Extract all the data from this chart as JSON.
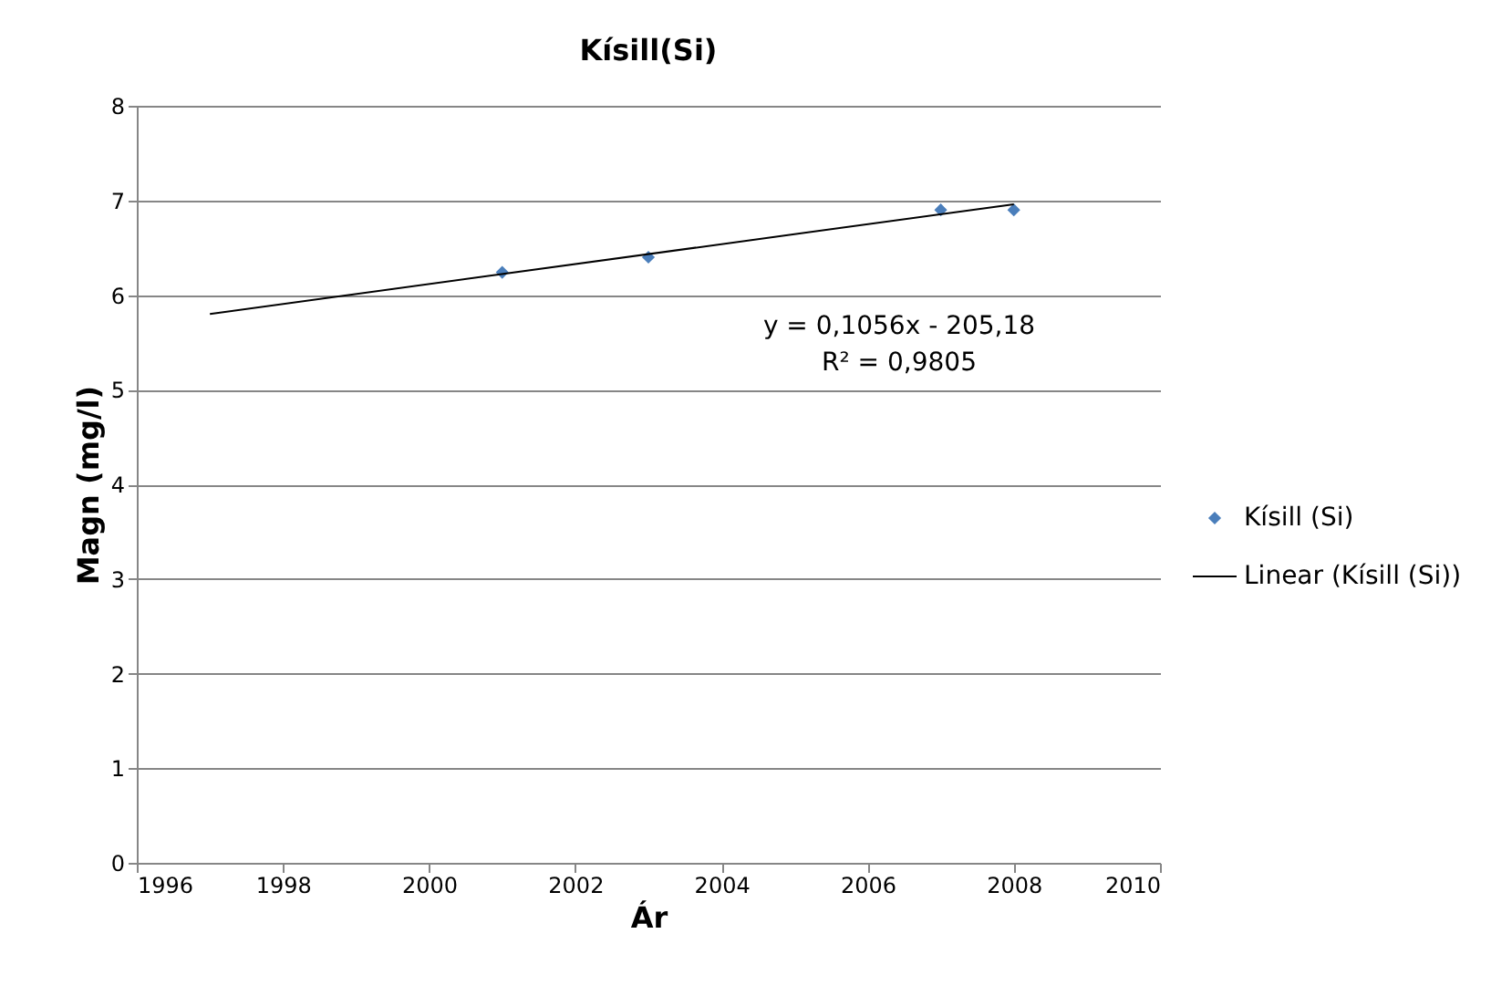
{
  "chart_data": {
    "type": "scatter",
    "title": "Kísill(Si)",
    "xlabel": "Ár",
    "ylabel": "Magn (mg/l)",
    "xlim": [
      1996,
      2010
    ],
    "xticks": [
      1996,
      1998,
      2000,
      2002,
      2004,
      2006,
      2008,
      2010
    ],
    "ylim": [
      0,
      8
    ],
    "yticks": [
      0,
      1,
      2,
      3,
      4,
      5,
      6,
      7,
      8
    ],
    "grid": "y",
    "legend": "right",
    "series": [
      {
        "name": "Kísill (Si)",
        "marker": "diamond",
        "color": "#4a7ebb",
        "x": [
          2001,
          2003,
          2007,
          2008
        ],
        "values": [
          6.24,
          6.4,
          6.9,
          6.9
        ]
      },
      {
        "name": "Linear (Kísill (Si))",
        "type": "line",
        "color": "#000000",
        "line_style": "solid",
        "x": [
          1997,
          2008
        ],
        "values": [
          5.8,
          6.96
        ]
      }
    ],
    "annotations": [
      "y = 0,1056x - 205,18",
      "R² = 0,9805"
    ]
  }
}
